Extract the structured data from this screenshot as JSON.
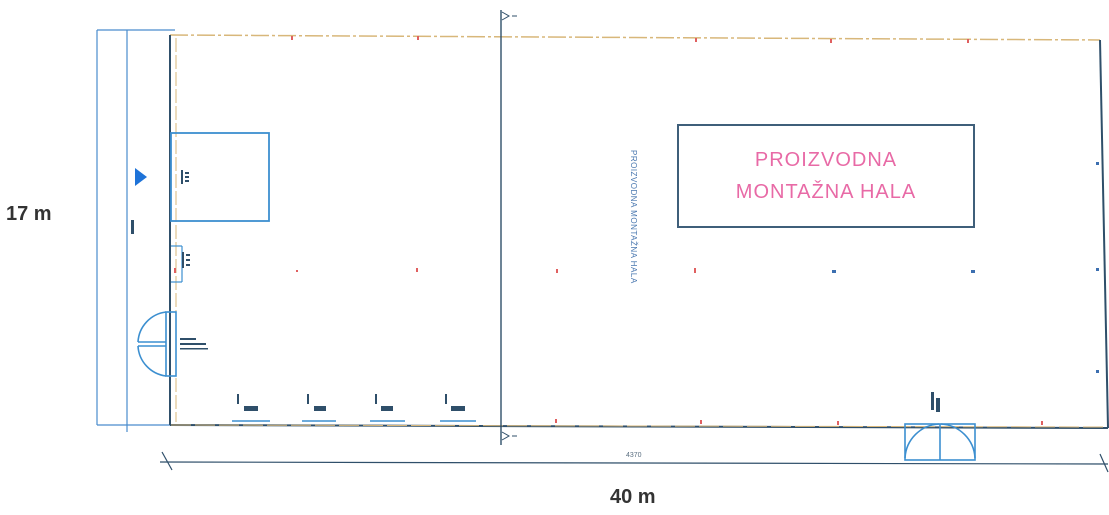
{
  "dimensions": {
    "width_label": "17 m",
    "length_label": "40 m",
    "drawing_dim": "4370"
  },
  "hall": {
    "title_line1": "PROIZVODNA",
    "title_line2": "MONTAŽNA HALA",
    "vertical_label": "PROIZVODNA MONTAŽNA HALA"
  },
  "colors": {
    "line": "#3f6f95",
    "wall": "#caa060",
    "accent": "#e86aa6",
    "marker": "#1e73d8"
  }
}
